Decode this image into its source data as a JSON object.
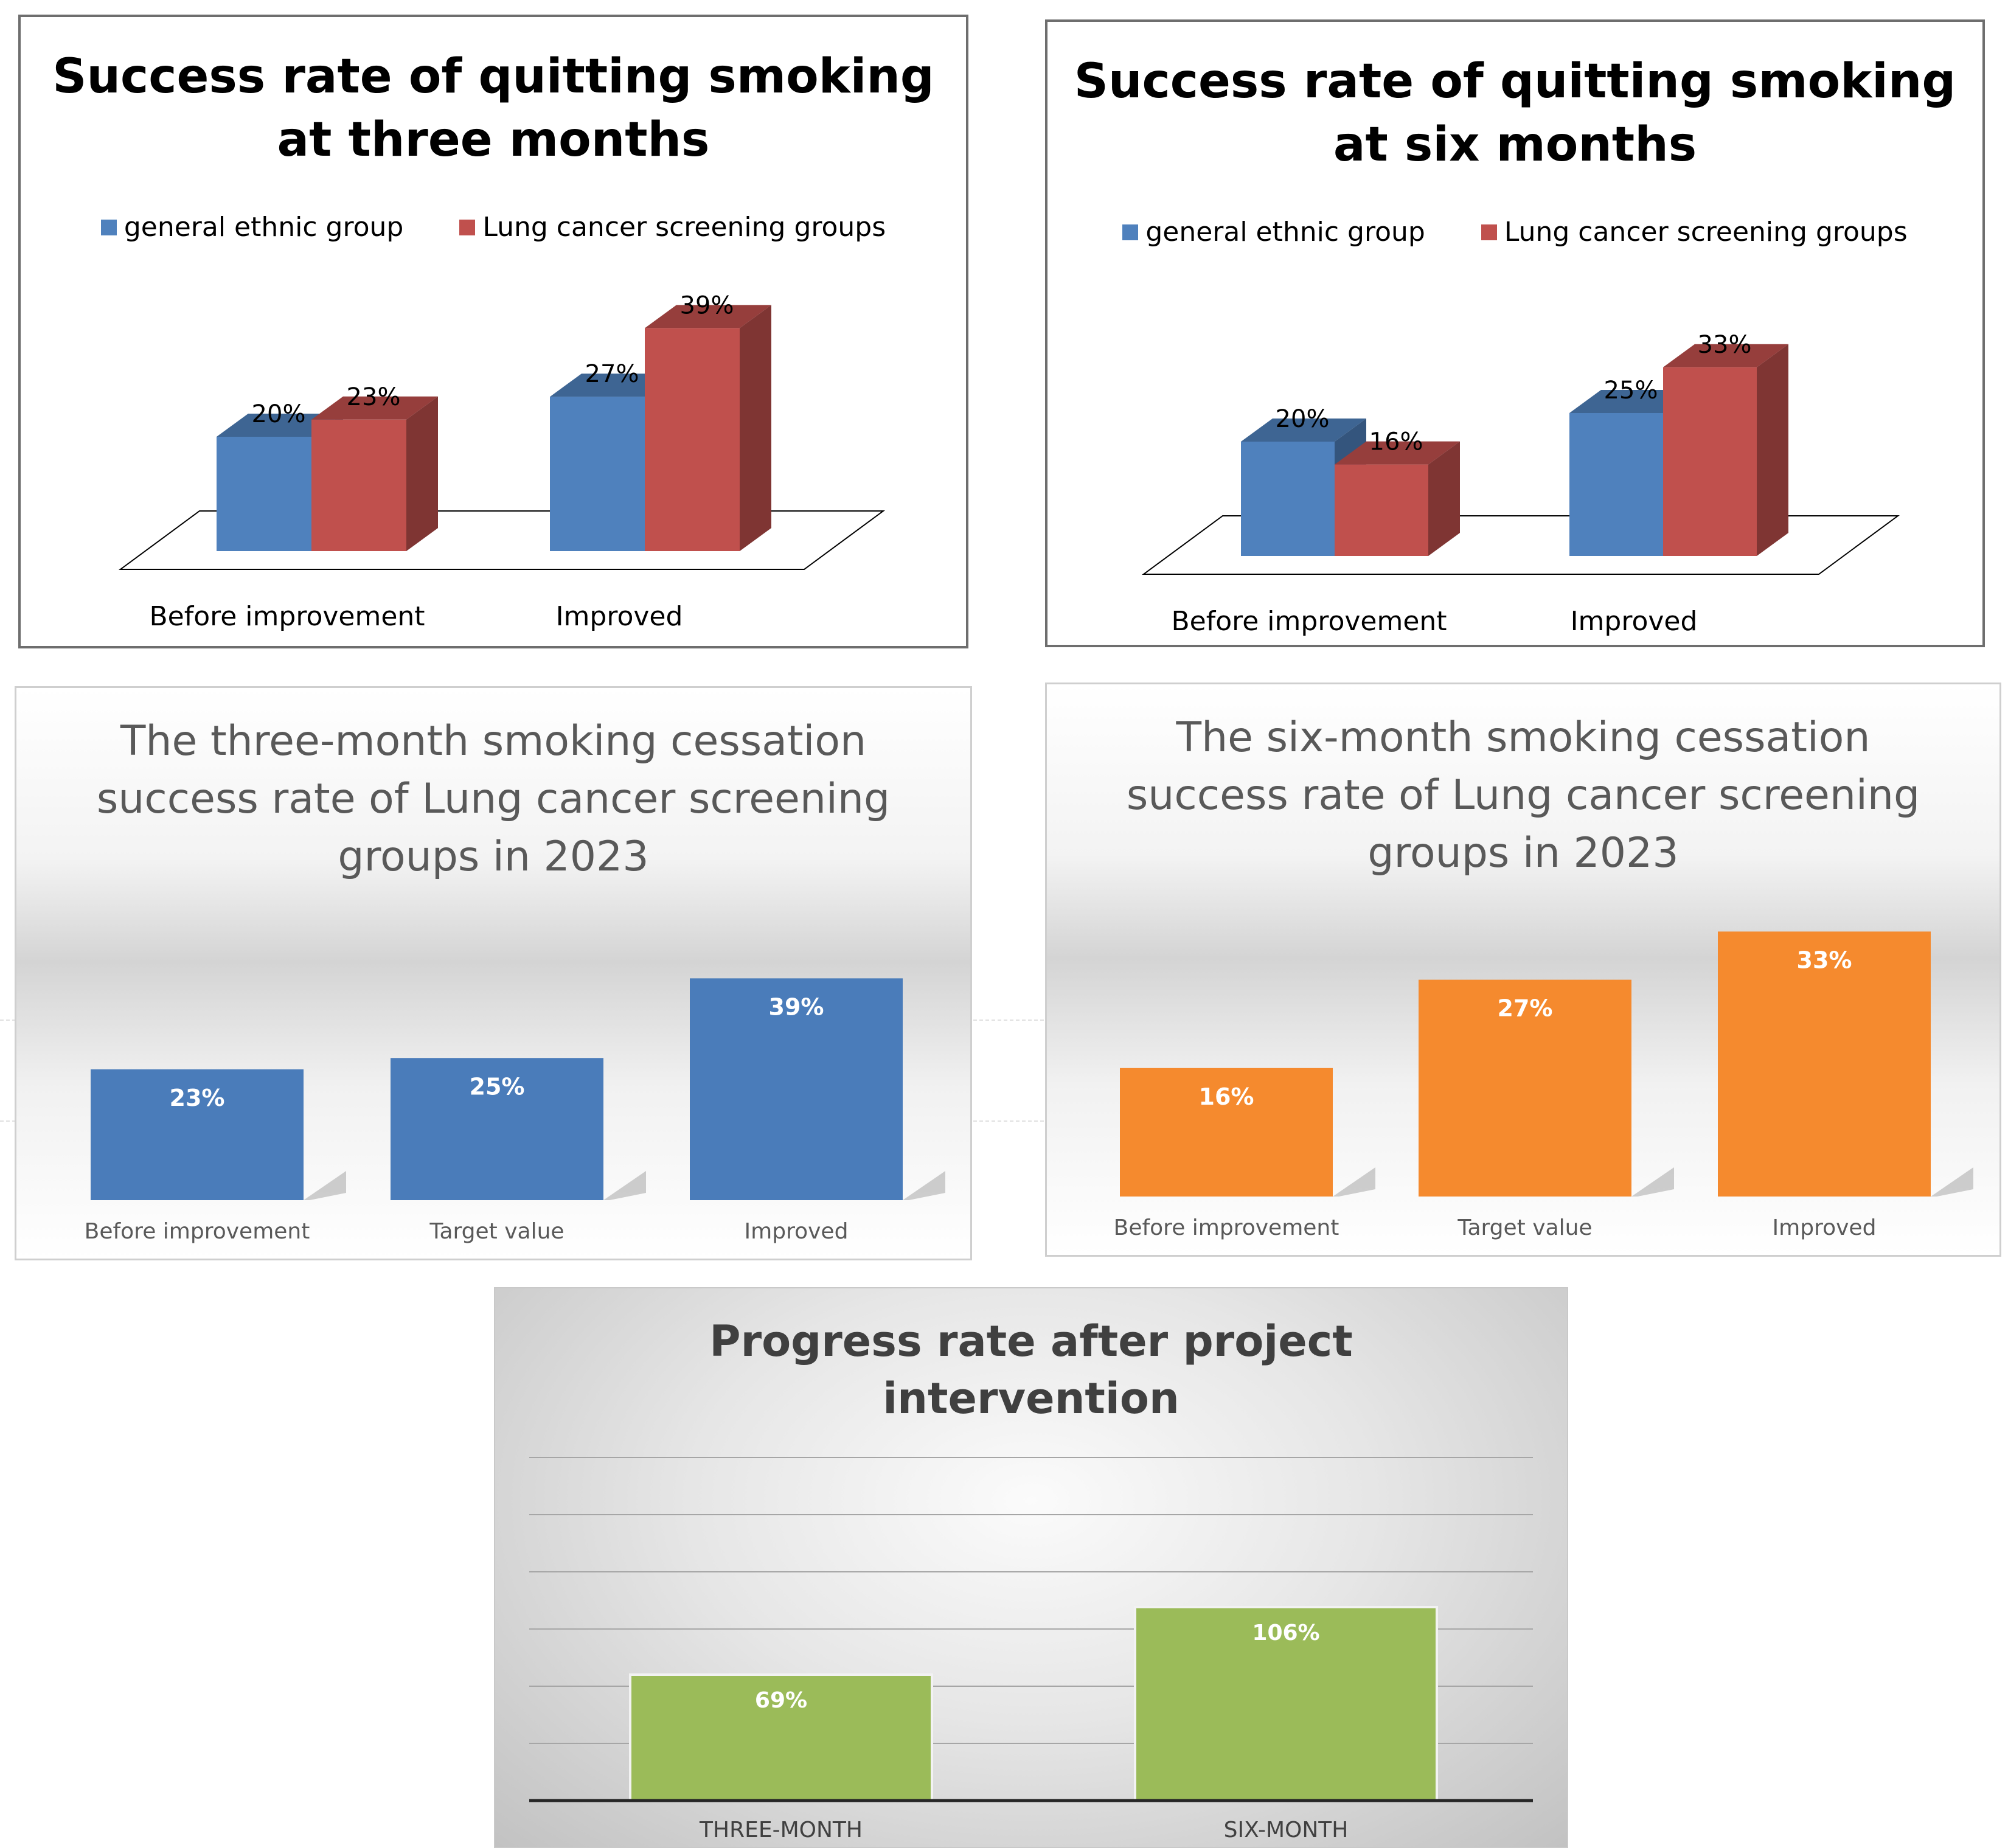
{
  "chart_data": [
    {
      "type": "bar",
      "title": "Success rate of quitting smoking\nat three months",
      "categories": [
        "Before improvement",
        "Improved"
      ],
      "series": [
        {
          "name": "general ethnic group",
          "values": [
            20,
            27
          ],
          "labels": [
            "20%",
            "27%"
          ]
        },
        {
          "name": "Lung cancer screening groups",
          "values": [
            23,
            39
          ],
          "labels": [
            "23%",
            "39%"
          ]
        }
      ],
      "ylim": [
        0,
        45
      ],
      "legend": "top",
      "style": "3d clustered columns",
      "colors": {
        "general ethnic group": "#4f81bd",
        "Lung cancer screening groups": "#c0504d"
      }
    },
    {
      "type": "bar",
      "title": "Success rate of quitting smoking\nat six months",
      "categories": [
        "Before improvement",
        "Improved"
      ],
      "series": [
        {
          "name": "general ethnic group",
          "values": [
            20,
            25
          ],
          "labels": [
            "20%",
            "25%"
          ]
        },
        {
          "name": "Lung cancer screening groups",
          "values": [
            16,
            33
          ],
          "labels": [
            "16%",
            "33%"
          ]
        }
      ],
      "ylim": [
        0,
        45
      ],
      "legend": "top",
      "style": "3d clustered columns",
      "colors": {
        "general ethnic group": "#4f81bd",
        "Lung cancer screening groups": "#c0504d"
      }
    },
    {
      "type": "bar",
      "title": "The three-month smoking cessation\nsuccess rate of Lung cancer screening\ngroups in 2023",
      "categories": [
        "Before improvement",
        "Target value",
        "Improved"
      ],
      "values": [
        23,
        25,
        39
      ],
      "labels": [
        "23%",
        "25%",
        "39%"
      ],
      "color": "#4a7cba"
    },
    {
      "type": "bar",
      "title": "The six-month smoking cessation\nsuccess rate of Lung cancer screening\ngroups in 2023",
      "categories": [
        "Before improvement",
        "Target value",
        "Improved"
      ],
      "values": [
        16,
        27,
        33
      ],
      "labels": [
        "16%",
        "27%",
        "33%"
      ],
      "color": "#f58a2e"
    },
    {
      "type": "bar",
      "title": "Progress rate after project\nintervention",
      "categories": [
        "THREE-MONTH",
        "SIX-MONTH"
      ],
      "values": [
        69,
        106
      ],
      "labels": [
        "69%",
        "106%"
      ],
      "grid": true,
      "color": "#9bbb59"
    }
  ]
}
